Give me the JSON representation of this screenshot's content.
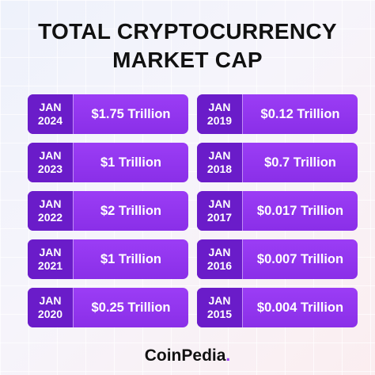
{
  "title": {
    "line1": "TOTAL CRYPTOCURRENCY",
    "line2": "MARKET CAP"
  },
  "left_column": [
    {
      "month": "JAN",
      "year": "2024",
      "value": "$1.75 Trillion"
    },
    {
      "month": "JAN",
      "year": "2023",
      "value": "$1 Trillion"
    },
    {
      "month": "JAN",
      "year": "2022",
      "value": "$2 Trillion"
    },
    {
      "month": "JAN",
      "year": "2021",
      "value": "$1 Trillion"
    },
    {
      "month": "JAN",
      "year": "2020",
      "value": "$0.25 Trillion"
    }
  ],
  "right_column": [
    {
      "month": "JAN",
      "year": "2019",
      "value": "$0.12 Trillion"
    },
    {
      "month": "JAN",
      "year": "2018",
      "value": "$0.7 Trillion"
    },
    {
      "month": "JAN",
      "year": "2017",
      "value": "$0.017 Trillion"
    },
    {
      "month": "JAN",
      "year": "2016",
      "value": "$0.007 Trillion"
    },
    {
      "month": "JAN",
      "year": "2015",
      "value": "$0.004 Trillion"
    }
  ],
  "brand": {
    "name_main": "CoinPedia",
    "name_dot": "."
  },
  "colors": {
    "card_primary": "#9b3df5",
    "card_date_bg": "#6a1cc9",
    "text_dark": "#111111"
  }
}
